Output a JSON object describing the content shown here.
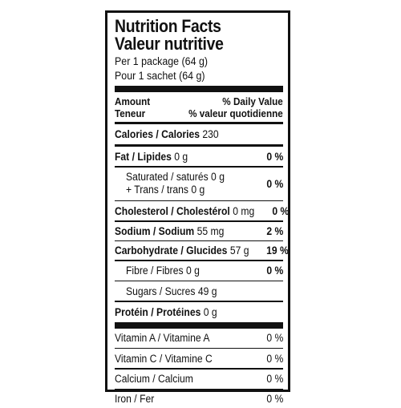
{
  "label": {
    "title_en": "Nutrition Facts",
    "title_fr": "Valeur nutritive",
    "serving_en": "Per 1 package (64 g)",
    "serving_fr": "Pour 1 sachet (64 g)",
    "amount_en": "Amount",
    "amount_fr": "Teneur",
    "dv_en": "% Daily Value",
    "dv_fr": "% valeur quotidienne",
    "calories_label": "Calories / Calories",
    "calories_value": "230",
    "fat": {
      "label": "Fat / Lipides",
      "amount": "0 g",
      "dv": "0 %"
    },
    "saturated": {
      "label": "Saturated / saturés",
      "amount": "0 g"
    },
    "trans": {
      "label": "+ Trans / trans",
      "amount": "0 g"
    },
    "saturated_trans_dv": "0 %",
    "cholesterol": {
      "label": "Cholesterol / Cholestérol",
      "amount": "0 mg",
      "dv": "0 %"
    },
    "sodium": {
      "label": "Sodium / Sodium",
      "amount": "55 mg",
      "dv": "2 %"
    },
    "carbohydrate": {
      "label": "Carbohydrate / Glucides",
      "amount": "57 g",
      "dv": "19 %"
    },
    "fibre": {
      "label": "Fibre / Fibres",
      "amount": "0 g",
      "dv": "0 %"
    },
    "sugars": {
      "label": "Sugars / Sucres",
      "amount": "49 g"
    },
    "protein": {
      "label": "Protéin / Protéines",
      "amount": "0 g"
    },
    "vitamin_a": {
      "label": "Vitamin A / Vitamine A",
      "dv": "0 %"
    },
    "vitamin_c": {
      "label": "Vitamin C / Vitamine C",
      "dv": "0 %"
    },
    "calcium": {
      "label": "Calcium / Calcium",
      "dv": "0 %"
    },
    "iron": {
      "label": "Iron / Fer",
      "dv": "0 %"
    }
  }
}
